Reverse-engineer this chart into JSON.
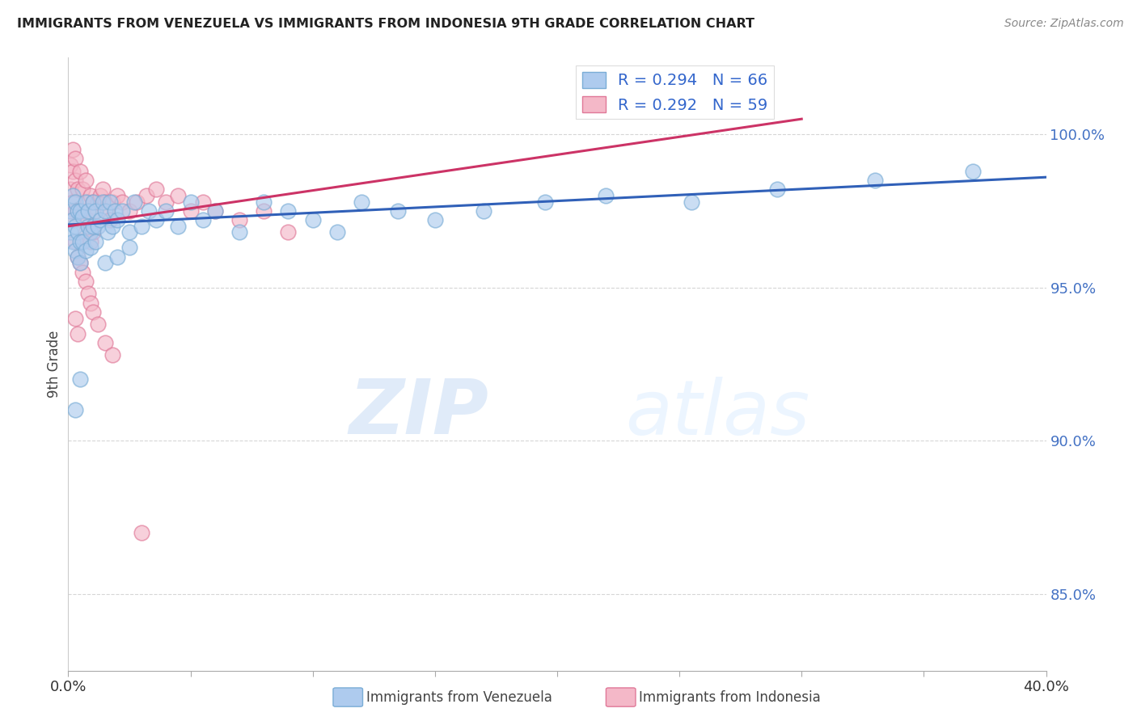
{
  "title": "IMMIGRANTS FROM VENEZUELA VS IMMIGRANTS FROM INDONESIA 9TH GRADE CORRELATION CHART",
  "source": "Source: ZipAtlas.com",
  "ylabel": "9th Grade",
  "ytick_labels": [
    "100.0%",
    "95.0%",
    "90.0%",
    "85.0%"
  ],
  "ytick_values": [
    1.0,
    0.95,
    0.9,
    0.85
  ],
  "xlim": [
    0.0,
    0.4
  ],
  "ylim": [
    0.825,
    1.025
  ],
  "venezuela_color": "#aecbee",
  "venezuela_edge": "#7aadd6",
  "indonesia_color": "#f4b8c8",
  "indonesia_edge": "#e07898",
  "trend_venezuela_color": "#3060b8",
  "trend_indonesia_color": "#cc3366",
  "legend_R_venezuela": "R = 0.294",
  "legend_N_venezuela": "N = 66",
  "legend_R_indonesia": "R = 0.292",
  "legend_N_indonesia": "N = 59",
  "watermark_zip": "ZIP",
  "watermark_atlas": "atlas",
  "venezuela_x": [
    0.001,
    0.001,
    0.002,
    0.002,
    0.002,
    0.003,
    0.003,
    0.003,
    0.004,
    0.004,
    0.004,
    0.005,
    0.005,
    0.005,
    0.006,
    0.006,
    0.007,
    0.007,
    0.008,
    0.008,
    0.009,
    0.009,
    0.01,
    0.01,
    0.011,
    0.011,
    0.012,
    0.013,
    0.014,
    0.015,
    0.016,
    0.017,
    0.018,
    0.019,
    0.02,
    0.022,
    0.025,
    0.027,
    0.03,
    0.033,
    0.036,
    0.04,
    0.045,
    0.05,
    0.055,
    0.06,
    0.07,
    0.08,
    0.09,
    0.1,
    0.11,
    0.12,
    0.135,
    0.15,
    0.17,
    0.195,
    0.22,
    0.255,
    0.29,
    0.33,
    0.37,
    0.015,
    0.02,
    0.025,
    0.003,
    0.005
  ],
  "venezuela_y": [
    0.975,
    0.968,
    0.972,
    0.98,
    0.965,
    0.978,
    0.97,
    0.962,
    0.975,
    0.968,
    0.96,
    0.975,
    0.965,
    0.958,
    0.973,
    0.965,
    0.978,
    0.962,
    0.97,
    0.975,
    0.968,
    0.963,
    0.978,
    0.97,
    0.975,
    0.965,
    0.97,
    0.972,
    0.978,
    0.975,
    0.968,
    0.978,
    0.97,
    0.975,
    0.972,
    0.975,
    0.968,
    0.978,
    0.97,
    0.975,
    0.972,
    0.975,
    0.97,
    0.978,
    0.972,
    0.975,
    0.968,
    0.978,
    0.975,
    0.972,
    0.968,
    0.978,
    0.975,
    0.972,
    0.975,
    0.978,
    0.98,
    0.978,
    0.982,
    0.985,
    0.988,
    0.958,
    0.96,
    0.963,
    0.91,
    0.92
  ],
  "indonesia_x": [
    0.001,
    0.001,
    0.002,
    0.002,
    0.002,
    0.003,
    0.003,
    0.003,
    0.004,
    0.004,
    0.005,
    0.005,
    0.006,
    0.006,
    0.007,
    0.007,
    0.008,
    0.008,
    0.009,
    0.009,
    0.01,
    0.01,
    0.011,
    0.012,
    0.013,
    0.014,
    0.015,
    0.016,
    0.017,
    0.018,
    0.02,
    0.022,
    0.025,
    0.028,
    0.032,
    0.036,
    0.04,
    0.045,
    0.05,
    0.055,
    0.06,
    0.07,
    0.08,
    0.09,
    0.002,
    0.003,
    0.004,
    0.005,
    0.006,
    0.007,
    0.008,
    0.009,
    0.01,
    0.012,
    0.015,
    0.018,
    0.003,
    0.004,
    0.03
  ],
  "indonesia_y": [
    0.99,
    0.982,
    0.988,
    0.978,
    0.995,
    0.985,
    0.975,
    0.992,
    0.982,
    0.975,
    0.988,
    0.972,
    0.982,
    0.975,
    0.985,
    0.968,
    0.978,
    0.972,
    0.98,
    0.965,
    0.978,
    0.968,
    0.975,
    0.978,
    0.98,
    0.982,
    0.978,
    0.975,
    0.972,
    0.978,
    0.98,
    0.978,
    0.975,
    0.978,
    0.98,
    0.982,
    0.978,
    0.98,
    0.975,
    0.978,
    0.975,
    0.972,
    0.975,
    0.968,
    0.972,
    0.965,
    0.96,
    0.958,
    0.955,
    0.952,
    0.948,
    0.945,
    0.942,
    0.938,
    0.932,
    0.928,
    0.94,
    0.935,
    0.87
  ]
}
